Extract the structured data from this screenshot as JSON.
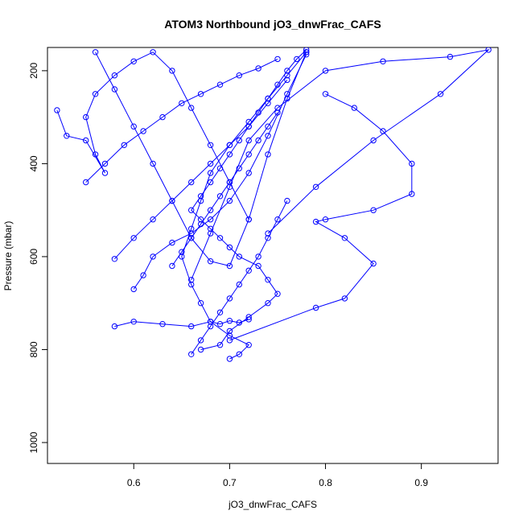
{
  "chart_data": {
    "type": "line",
    "title": "ATOM3 Northbound jO3_dnwFrac_CAFS",
    "xlabel": "jO3_dnwFrac_CAFS",
    "ylabel": "Pressure (mbar)",
    "xlim": [
      0.51,
      0.98
    ],
    "ylim": [
      1045,
      150
    ],
    "y_reversed": true,
    "x_ticks": [
      0.6,
      0.7,
      0.8,
      0.9
    ],
    "x_tick_labels": [
      "0.6",
      "0.7",
      "0.8",
      "0.9"
    ],
    "y_ticks": [
      200,
      400,
      600,
      800,
      1000
    ],
    "y_tick_labels": [
      "200",
      "400",
      "600",
      "800",
      "1000"
    ],
    "grid": false,
    "legend": "none",
    "series_color": "#0000ff",
    "marker": "open-circle",
    "series": [
      {
        "x": [
          0.67,
          0.69,
          0.7,
          0.72,
          0.74,
          0.75,
          0.74,
          0.73,
          0.71,
          0.7,
          0.69,
          0.68,
          0.67,
          0.66,
          0.67,
          0.68,
          0.69,
          0.7,
          0.71,
          0.72,
          0.73,
          0.74,
          0.75,
          0.76,
          0.77,
          0.78
        ],
        "y": [
          800,
          790,
          760,
          730,
          700,
          680,
          650,
          620,
          600,
          580,
          560,
          540,
          520,
          500,
          470,
          440,
          410,
          380,
          350,
          320,
          290,
          260,
          230,
          200,
          175,
          155
        ]
      },
      {
        "x": [
          0.78,
          0.76,
          0.74,
          0.72,
          0.7,
          0.68,
          0.67,
          0.66,
          0.65,
          0.66,
          0.67,
          0.68,
          0.7,
          0.72,
          0.71,
          0.7
        ],
        "y": [
          160,
          210,
          260,
          310,
          360,
          420,
          480,
          540,
          600,
          660,
          700,
          740,
          770,
          790,
          810,
          820
        ]
      },
      {
        "x": [
          0.8,
          0.83,
          0.86,
          0.89,
          0.89,
          0.85,
          0.8,
          0.79,
          0.82,
          0.85,
          0.82,
          0.79,
          0.7
        ],
        "y": [
          250,
          280,
          330,
          400,
          465,
          500,
          520,
          525,
          560,
          615,
          690,
          710,
          780
        ]
      },
      {
        "x": [
          0.74,
          0.79,
          0.85,
          0.92,
          0.97,
          0.93,
          0.86,
          0.8,
          0.75,
          0.72,
          0.7,
          0.68,
          0.66
        ],
        "y": [
          550,
          450,
          350,
          250,
          155,
          170,
          180,
          200,
          280,
          350,
          450,
          550,
          650
        ]
      },
      {
        "x": [
          0.58,
          0.6,
          0.63,
          0.66,
          0.68,
          0.69,
          0.7,
          0.71,
          0.72
        ],
        "y": [
          750,
          740,
          745,
          750,
          740,
          745,
          738,
          742,
          735
        ]
      },
      {
        "x": [
          0.52,
          0.53,
          0.55,
          0.57,
          0.56,
          0.55,
          0.56,
          0.58,
          0.6,
          0.62,
          0.64,
          0.66,
          0.68,
          0.7,
          0.72
        ],
        "y": [
          285,
          340,
          350,
          420,
          380,
          300,
          250,
          210,
          180,
          160,
          200,
          280,
          360,
          440,
          520
        ]
      },
      {
        "x": [
          0.56,
          0.58,
          0.6,
          0.62,
          0.64,
          0.66,
          0.68,
          0.7,
          0.72,
          0.74,
          0.76,
          0.78
        ],
        "y": [
          160,
          240,
          320,
          400,
          480,
          560,
          610,
          620,
          520,
          380,
          260,
          160
        ]
      },
      {
        "x": [
          0.6,
          0.61,
          0.62,
          0.64,
          0.66,
          0.68,
          0.7,
          0.72,
          0.74,
          0.76,
          0.78
        ],
        "y": [
          670,
          640,
          600,
          570,
          550,
          520,
          480,
          420,
          340,
          250,
          165
        ]
      },
      {
        "x": [
          0.58,
          0.6,
          0.62,
          0.64,
          0.66,
          0.68,
          0.7,
          0.72,
          0.74,
          0.76
        ],
        "y": [
          605,
          560,
          520,
          480,
          440,
          400,
          360,
          320,
          270,
          220
        ]
      },
      {
        "x": [
          0.55,
          0.57,
          0.59,
          0.61,
          0.63,
          0.65,
          0.67,
          0.69,
          0.71,
          0.73,
          0.75
        ],
        "y": [
          440,
          400,
          360,
          330,
          300,
          270,
          250,
          230,
          210,
          195,
          175
        ]
      },
      {
        "x": [
          0.64,
          0.65,
          0.66,
          0.67,
          0.68,
          0.69,
          0.7,
          0.71,
          0.72,
          0.73,
          0.74,
          0.75
        ],
        "y": [
          620,
          590,
          560,
          530,
          500,
          470,
          440,
          410,
          380,
          350,
          320,
          290
        ]
      },
      {
        "x": [
          0.66,
          0.67,
          0.68,
          0.69,
          0.7,
          0.71,
          0.72,
          0.73,
          0.74,
          0.75,
          0.76
        ],
        "y": [
          810,
          780,
          750,
          720,
          690,
          660,
          630,
          600,
          560,
          520,
          480
        ]
      }
    ]
  }
}
